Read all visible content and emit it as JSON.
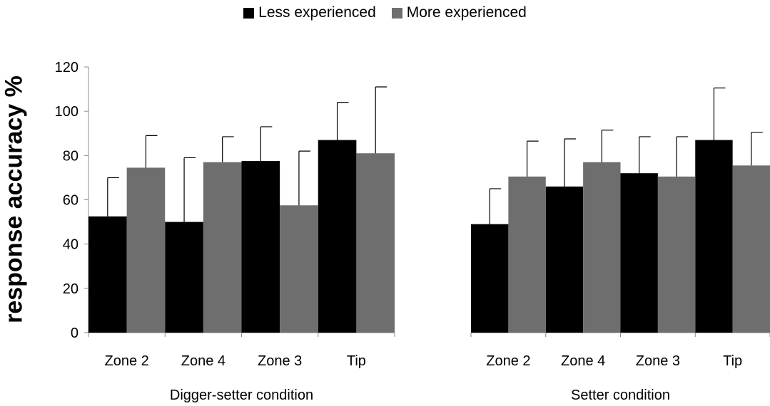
{
  "legend": [
    {
      "label": "Less experienced",
      "color": "#000000"
    },
    {
      "label": "More experienced",
      "color": "#6e6e6e"
    }
  ],
  "ylabel": "response accuracy %",
  "chart_data": [
    {
      "type": "bar",
      "xlabel": "Digger-setter condition",
      "ylabel": "response accuracy %",
      "categories": [
        "Zone 2",
        "Zone 4",
        "Zone 3",
        "Tip"
      ],
      "ylim": [
        0,
        120
      ],
      "yticks": [
        0,
        20,
        40,
        60,
        80,
        100,
        120
      ],
      "series": [
        {
          "name": "Less experienced",
          "color": "#000000",
          "values": [
            52.5,
            50,
            77.5,
            87
          ],
          "error": [
            17.5,
            29,
            15.5,
            17
          ]
        },
        {
          "name": "More experienced",
          "color": "#6e6e6e",
          "values": [
            74.5,
            77,
            57.5,
            81
          ],
          "error": [
            14.5,
            11.5,
            24.5,
            30
          ]
        }
      ]
    },
    {
      "type": "bar",
      "xlabel": "Setter condition",
      "categories": [
        "Zone 2",
        "Zone 4",
        "Zone 3",
        "Tip"
      ],
      "ylim": [
        0,
        120
      ],
      "series": [
        {
          "name": "Less experienced",
          "color": "#000000",
          "values": [
            49,
            66,
            72,
            87
          ],
          "error": [
            16,
            21.5,
            16.5,
            23.5
          ]
        },
        {
          "name": "More experienced",
          "color": "#6e6e6e",
          "values": [
            70.5,
            77,
            70.5,
            75.5
          ],
          "error": [
            16,
            14.5,
            18,
            15
          ]
        }
      ]
    }
  ]
}
